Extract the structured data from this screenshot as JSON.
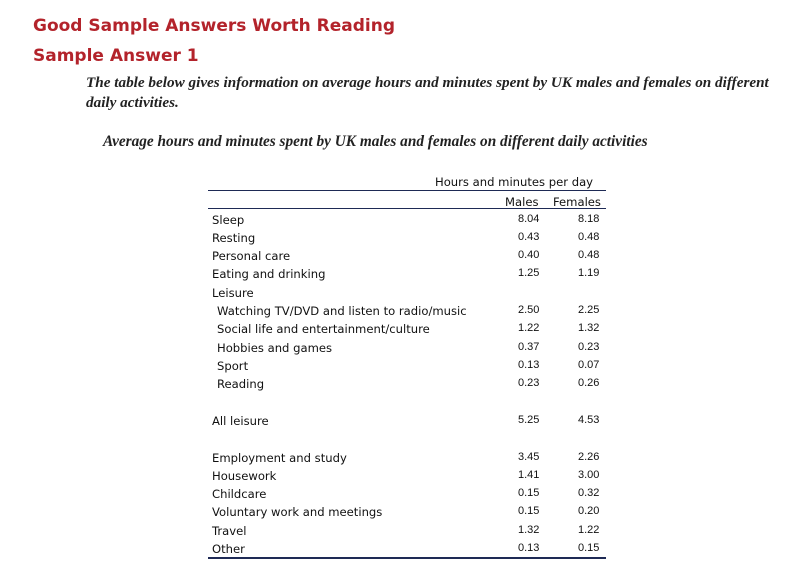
{
  "headings": {
    "title": "Good Sample Answers Worth Reading",
    "subtitle": "Sample Answer 1"
  },
  "prompt": "The table below gives information on average hours and minutes spent by UK males and females on different daily activities.",
  "table": {
    "caption": "Average hours and minutes spent by UK males and females on different daily activities",
    "group_header": "Hours and minutes per day",
    "col_males": "Males",
    "col_females": "Females",
    "rows": [
      {
        "label": "Sleep",
        "males": "8.04",
        "females": "8.18"
      },
      {
        "label": "Resting",
        "males": "0.43",
        "females": "0.48"
      },
      {
        "label": "Personal care",
        "males": "0.40",
        "females": "0.48"
      },
      {
        "label": "Eating and drinking",
        "males": "1.25",
        "females": "1.19"
      },
      {
        "label": "Leisure",
        "males": "",
        "females": ""
      },
      {
        "label": "Watching TV/DVD and listen to radio/music",
        "males": "2.50",
        "females": "2.25"
      },
      {
        "label": "Social life and entertainment/culture",
        "males": "1.22",
        "females": "1.32"
      },
      {
        "label": "Hobbies and games",
        "males": "0.37",
        "females": "0.23"
      },
      {
        "label": "Sport",
        "males": "0.13",
        "females": "0.07"
      },
      {
        "label": "Reading",
        "males": "0.23",
        "females": "0.26"
      },
      {
        "label": "All leisure",
        "males": "5.25",
        "females": "4.53"
      },
      {
        "label": "Employment and study",
        "males": "3.45",
        "females": "2.26"
      },
      {
        "label": "Housework",
        "males": "1.41",
        "females": "3.00"
      },
      {
        "label": "Childcare",
        "males": "0.15",
        "females": "0.32"
      },
      {
        "label": "Voluntary work and meetings",
        "males": "0.15",
        "females": "0.20"
      },
      {
        "label": "Travel",
        "males": "1.32",
        "females": "1.22"
      },
      {
        "label": "Other",
        "males": "0.13",
        "females": "0.15"
      }
    ]
  }
}
